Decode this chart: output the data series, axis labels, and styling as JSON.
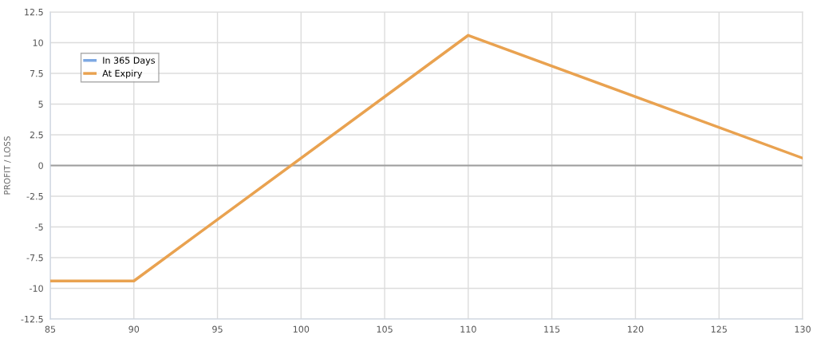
{
  "chart_data": {
    "type": "line",
    "ylabel": "PROFIT / LOSS",
    "x": [
      85,
      90,
      110,
      130
    ],
    "series": [
      {
        "name": "In 365 Days",
        "color": "#7ea9e3",
        "values": [
          null,
          null,
          null,
          null
        ]
      },
      {
        "name": "At Expiry",
        "color": "#e9a250",
        "values": [
          -9.4,
          -9.4,
          10.6,
          0.6
        ]
      }
    ],
    "xlim": [
      85,
      130
    ],
    "xticks": [
      85,
      90,
      95,
      100,
      105,
      110,
      115,
      120,
      125,
      130
    ],
    "ylim": [
      -12.5,
      12.5
    ],
    "yticks": [
      -12.5,
      -10,
      -7.5,
      -5,
      -2.5,
      0,
      2.5,
      5,
      7.5,
      10,
      12.5
    ],
    "ref_lines": [
      {
        "axis": "y",
        "value": 0,
        "color": "#9e9e9e"
      }
    ],
    "grid": true,
    "legend": "top left",
    "marker": "none",
    "line_style": "solid"
  }
}
